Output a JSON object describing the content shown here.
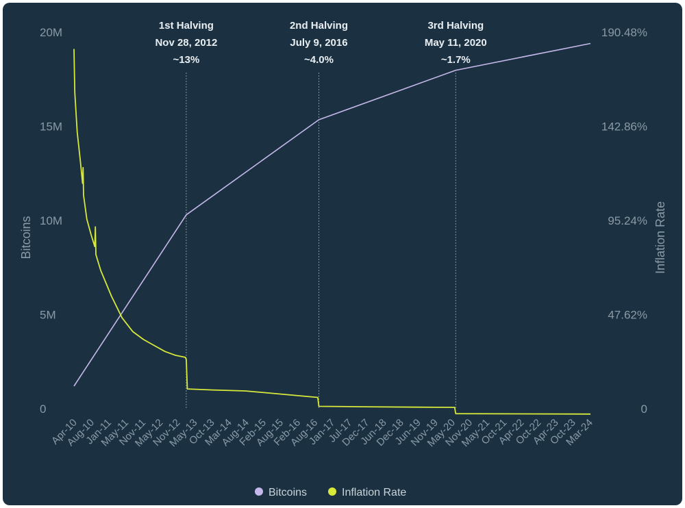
{
  "chart_data": {
    "type": "line",
    "x_categories": [
      "Apr-10",
      "Aug-10",
      "Jan-11",
      "May-11",
      "Nov-11",
      "May-12",
      "Nov-12",
      "May-13",
      "Oct-13",
      "Mar-14",
      "Aug-14",
      "Feb-15",
      "Aug-15",
      "Feb-16",
      "Aug-16",
      "Jan-17",
      "Jul-17",
      "Dec-17",
      "Jun-18",
      "Dec-18",
      "Jun-19",
      "Nov-19",
      "May-20",
      "Nov-20",
      "May-21",
      "Oct-21",
      "Apr-22",
      "Oct-22",
      "Apr-23",
      "Oct-23",
      "Mar-24"
    ],
    "ylabel_left": "Bitcoins",
    "ylabel_right": "Inflation Rate",
    "left_ticks": [
      "0",
      "5M",
      "10M",
      "15M",
      "20M"
    ],
    "right_ticks": [
      "0",
      "47.62%",
      "95.24%",
      "142.86%",
      "190.48%"
    ],
    "ylim_left": [
      0,
      20000000
    ],
    "ylim_right": [
      0,
      190.48
    ],
    "series": [
      {
        "name": "Bitcoins",
        "color": "#c5b8ea",
        "axis": "left",
        "points": [
          {
            "x": 0,
            "y": 1200000
          },
          {
            "x": 10.5,
            "y": 10300000
          },
          {
            "x": 22.9,
            "y": 15350000
          },
          {
            "x": 35.7,
            "y": 17980000
          },
          {
            "x": 48.3,
            "y": 19400000
          }
        ]
      },
      {
        "name": "Inflation Rate",
        "color": "#d8e93a",
        "axis": "right",
        "points": [
          {
            "x": 0,
            "y": 182
          },
          {
            "x": 0.08,
            "y": 160
          },
          {
            "x": 0.3,
            "y": 140
          },
          {
            "x": 0.6,
            "y": 125
          },
          {
            "x": 0.8,
            "y": 114
          },
          {
            "x": 0.85,
            "y": 122
          },
          {
            "x": 0.9,
            "y": 108
          },
          {
            "x": 1.2,
            "y": 96
          },
          {
            "x": 1.6,
            "y": 88
          },
          {
            "x": 1.95,
            "y": 82
          },
          {
            "x": 2.0,
            "y": 92
          },
          {
            "x": 2.05,
            "y": 78
          },
          {
            "x": 2.5,
            "y": 70
          },
          {
            "x": 3.5,
            "y": 57
          },
          {
            "x": 4.5,
            "y": 46
          },
          {
            "x": 5.5,
            "y": 39
          },
          {
            "x": 6.5,
            "y": 35
          },
          {
            "x": 7.5,
            "y": 32
          },
          {
            "x": 8.5,
            "y": 29
          },
          {
            "x": 9.5,
            "y": 27
          },
          {
            "x": 10.4,
            "y": 26
          },
          {
            "x": 10.5,
            "y": 25
          },
          {
            "x": 10.6,
            "y": 10
          },
          {
            "x": 13,
            "y": 9.5
          },
          {
            "x": 16,
            "y": 9
          },
          {
            "x": 19,
            "y": 7.6
          },
          {
            "x": 22.8,
            "y": 5.7
          },
          {
            "x": 22.9,
            "y": 1.2
          },
          {
            "x": 27,
            "y": 1
          },
          {
            "x": 32,
            "y": 0.8
          },
          {
            "x": 35.6,
            "y": 0.7
          },
          {
            "x": 35.7,
            "y": -2.5
          },
          {
            "x": 42,
            "y": -2.6
          },
          {
            "x": 48.3,
            "y": -2.7
          }
        ]
      }
    ],
    "halvings": [
      {
        "x": 10.5,
        "line1": "1st Halving",
        "line2": "Nov 28, 2012",
        "line3": "~13%"
      },
      {
        "x": 22.9,
        "line1": "2nd Halving",
        "line2": "July 9, 2016",
        "line3": "~4.0%"
      },
      {
        "x": 35.7,
        "line1": "3rd Halving",
        "line2": "May 11, 2020",
        "line3": "~1.7%"
      }
    ],
    "x_domain": [
      0,
      48.3
    ],
    "legend": "bottom-center",
    "grid": false
  }
}
